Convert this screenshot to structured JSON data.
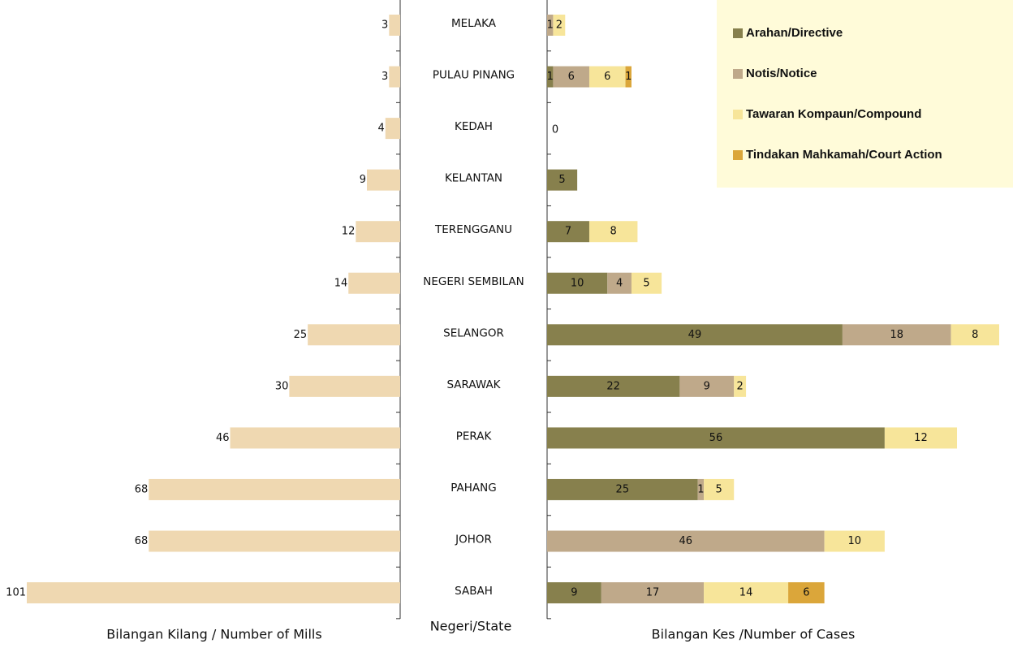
{
  "chart_data": [
    {
      "type": "hbar_left",
      "axis_label": "Bilangan Kilang / Number of Mills",
      "center_label": "Negeri/State",
      "categories": [
        "MELAKA",
        "PULAU PINANG",
        "KEDAH",
        "KELANTAN",
        "TERENGGANU",
        "NEGERI SEMBILAN",
        "SELANGOR",
        "SARAWAK",
        "PERAK",
        "PAHANG",
        "JOHOR",
        "SABAH"
      ],
      "values": [
        3,
        3,
        4,
        9,
        12,
        14,
        25,
        30,
        46,
        68,
        68,
        101
      ],
      "color": "#efd8b1",
      "xlim": [
        0,
        101
      ]
    },
    {
      "type": "stacked_hbar",
      "axis_label": "Bilangan Kes /Number of Cases",
      "legend_position": "upper right",
      "series": [
        {
          "name": "Arahan/Directive",
          "color": "#87804d",
          "values": [
            0,
            1,
            0,
            5,
            7,
            10,
            49,
            22,
            56,
            25,
            0,
            9
          ]
        },
        {
          "name": "Notis/Notice",
          "color": "#bfa98a",
          "values": [
            1,
            6,
            0,
            0,
            0,
            4,
            18,
            9,
            0,
            1,
            46,
            17
          ]
        },
        {
          "name": "Tawaran Kompaun/Compound",
          "color": "#f7e59a",
          "values": [
            2,
            6,
            0,
            0,
            8,
            5,
            8,
            2,
            12,
            5,
            10,
            14
          ]
        },
        {
          "name": "Tindakan Mahkamah/Court Action",
          "color": "#dba63a",
          "values": [
            0,
            1,
            0,
            0,
            0,
            0,
            0,
            0,
            0,
            0,
            0,
            6
          ]
        }
      ],
      "xlim": [
        0,
        75
      ]
    }
  ]
}
